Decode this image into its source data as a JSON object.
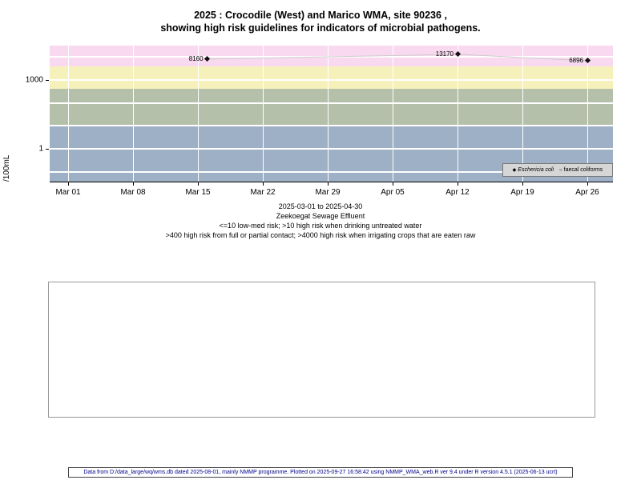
{
  "title": {
    "line1": "2025 : Crocodile (West) and Marico WMA, site 90236 ,",
    "line2": "showing high risk guidelines for indicators of microbial pathogens."
  },
  "chart_data": {
    "type": "scatter",
    "yscale": "log",
    "ylabel": "/100mL",
    "y_ticks": [
      {
        "value": 1000,
        "label": "1000"
      },
      {
        "value": 1,
        "label": "1"
      }
    ],
    "x_ticks": [
      "Mar 01",
      "Mar 08",
      "Mar 15",
      "Mar 22",
      "Mar 29",
      "Apr 05",
      "Apr 12",
      "Apr 19",
      "Apr 26"
    ],
    "date_range": "2025-03-01 to 2025-04-30",
    "series": [
      {
        "name": "Eschericia coli",
        "marker": "diamond",
        "points": [
          {
            "day": 15,
            "value": 8160,
            "label": "8160"
          },
          {
            "day": 42,
            "value": 13170,
            "label": "13170"
          },
          {
            "day": 56,
            "value": 6896,
            "label": "6896"
          }
        ]
      },
      {
        "name": "faecal coliforms",
        "marker": "circle",
        "points": []
      }
    ],
    "risk_bands": [
      {
        "min": 4000,
        "max": null,
        "color": "#f9d9ef"
      },
      {
        "min": 400,
        "max": 4000,
        "color": "#f6f1bb"
      },
      {
        "min": 10,
        "max": 400,
        "color": "#b5c0ab"
      },
      {
        "min": null,
        "max": 10,
        "color": "#9db0c5"
      }
    ],
    "line_color": "#cccccc"
  },
  "subtitle": {
    "line1": "2025-03-01 to 2025-04-30",
    "line2": "Zeekoegat Sewage Effluent",
    "line3": "<=10 low-med risk; >10 high risk when drinking untreated water",
    "line4": ">400 high risk from full or partial contact; >4000 high risk when irrigating crops that are eaten raw"
  },
  "legend": {
    "items": [
      {
        "marker": "◆",
        "label": "Eschericia coli"
      },
      {
        "marker": "○",
        "label": "faecal coliforms"
      }
    ]
  },
  "footer": {
    "text": "Data from D:/data_large/wq/wms.db dated 2025-08-01, mainly NMMP programme. Plotted on 2025-09-27 16:58:42 using NMMP_WMA_web.R ver 9.4 under R version 4.5.1 (2025-06-13 ucrt)"
  }
}
